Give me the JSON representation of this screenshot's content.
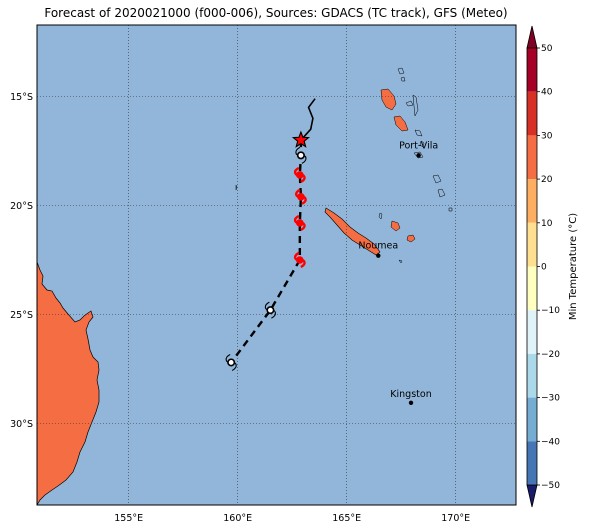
{
  "title": "Forecast of 2020021000 (f000-006), Sources: GDACS (TC track), GFS (Meteo)",
  "map": {
    "ocean_color": "#92b6d9",
    "land_color": "#f46d43",
    "gridline_style": "dotted",
    "lon_ticks": [
      {
        "value": 155,
        "label": "155°E"
      },
      {
        "value": 160,
        "label": "160°E"
      },
      {
        "value": 165,
        "label": "165°E"
      },
      {
        "value": 170,
        "label": "170°E"
      }
    ],
    "lat_ticks": [
      {
        "value": -15,
        "label": "15°S"
      },
      {
        "value": -20,
        "label": "20°S"
      },
      {
        "value": -25,
        "label": "25°S"
      },
      {
        "value": -30,
        "label": "30°S"
      }
    ],
    "places": [
      {
        "id": "port-vila",
        "name": "Port-Vila",
        "lon": 168.3,
        "lat": -17.7
      },
      {
        "id": "noumea",
        "name": "Noumea",
        "lon": 166.45,
        "lat": -22.3
      },
      {
        "id": "kingston",
        "name": "Kingston",
        "lon": 167.95,
        "lat": -29.05
      }
    ],
    "track_history": [
      [
        163.55,
        -15.1
      ],
      [
        163.25,
        -15.5
      ],
      [
        163.45,
        -16.0
      ],
      [
        163.35,
        -16.5
      ],
      [
        162.9,
        -17.0
      ]
    ],
    "current_position": {
      "lon": 162.9,
      "lat": -17.0,
      "marker": "star",
      "color": "#ff0000"
    },
    "forecast_points": [
      {
        "lon": 162.9,
        "lat": -17.7,
        "category": "low",
        "color": "#ffffff"
      },
      {
        "lon": 162.85,
        "lat": -18.6,
        "category": "cyclone",
        "color": "#ff0000"
      },
      {
        "lon": 162.9,
        "lat": -19.6,
        "category": "cyclone",
        "color": "#ff0000"
      },
      {
        "lon": 162.85,
        "lat": -20.8,
        "category": "cyclone",
        "color": "#ff0000"
      },
      {
        "lon": 162.85,
        "lat": -22.5,
        "category": "cyclone",
        "color": "#ff0000"
      },
      {
        "lon": 161.5,
        "lat": -24.8,
        "category": "low",
        "color": "#ffffff"
      },
      {
        "lon": 159.7,
        "lat": -27.2,
        "category": "low",
        "color": "#ffffff"
      }
    ],
    "forecast_track": [
      [
        162.9,
        -17.0
      ],
      [
        162.9,
        -17.7
      ],
      [
        162.85,
        -18.6
      ],
      [
        162.9,
        -19.6
      ],
      [
        162.85,
        -20.8
      ],
      [
        162.85,
        -22.5
      ],
      [
        161.5,
        -24.8
      ],
      [
        159.7,
        -27.2
      ]
    ]
  },
  "colorbar": {
    "label": "Min Temperature (°C)",
    "ticks": [
      "50",
      "40",
      "30",
      "20",
      "10",
      "0",
      "−10",
      "−20",
      "−30",
      "−40",
      "−50"
    ],
    "colors": [
      "#a50026",
      "#d73027",
      "#f46d43",
      "#fdae61",
      "#fee090",
      "#ffffbf",
      "#e0f3f8",
      "#abd9e9",
      "#74add1",
      "#4575b4",
      "#313695"
    ],
    "extend_top_color": "#800026",
    "extend_bottom_color": "#1a1b6b"
  }
}
